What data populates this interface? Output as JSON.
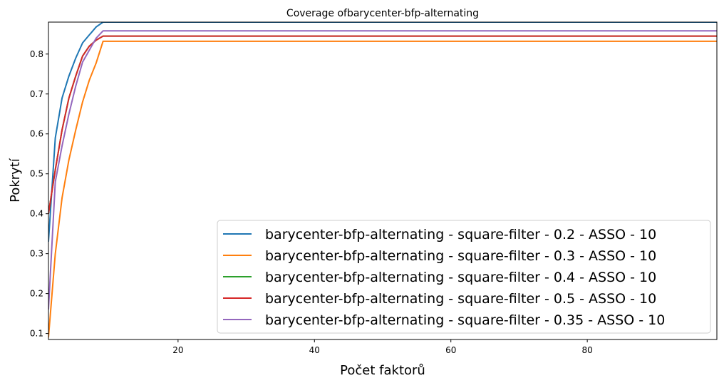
{
  "chart_data": {
    "type": "line",
    "title": "Coverage ofbarycenter-bfp-alternating",
    "xlabel": "Počet faktorů",
    "ylabel": "Pokrytí",
    "xlim": [
      1,
      99
    ],
    "ylim": [
      0.085,
      0.88
    ],
    "xticks": [
      20,
      40,
      60,
      80
    ],
    "yticks": [
      0.1,
      0.2,
      0.3,
      0.4,
      0.5,
      0.6,
      0.7,
      0.8
    ],
    "grid": false,
    "legend_position": "lower-right",
    "series": [
      {
        "name": "barycenter-bfp-alternating - square-filter - 0.2 - ASSO - 10",
        "color": "#1f77b4",
        "x": [
          1,
          2,
          3,
          4,
          5,
          6,
          7,
          8,
          9,
          10,
          99
        ],
        "y": [
          0.33,
          0.59,
          0.69,
          0.745,
          0.79,
          0.828,
          0.848,
          0.868,
          0.88,
          0.88,
          0.88
        ]
      },
      {
        "name": "barycenter-bfp-alternating - square-filter - 0.3 - ASSO - 10",
        "color": "#ff7f0e",
        "x": [
          1,
          2,
          3,
          4,
          5,
          6,
          7,
          8,
          9,
          10,
          99
        ],
        "y": [
          0.09,
          0.3,
          0.44,
          0.535,
          0.61,
          0.68,
          0.735,
          0.778,
          0.832,
          0.832,
          0.832
        ]
      },
      {
        "name": "barycenter-bfp-alternating - square-filter - 0.4 - ASSO - 10",
        "color": "#2ca02c",
        "x": [
          1,
          2,
          3,
          4,
          5,
          6,
          7,
          8,
          9,
          10,
          99
        ],
        "y": [
          0.4,
          0.51,
          0.61,
          0.69,
          0.745,
          0.795,
          0.82,
          0.835,
          0.845,
          0.845,
          0.845
        ]
      },
      {
        "name": "barycenter-bfp-alternating - square-filter - 0.5 - ASSO - 10",
        "color": "#d62728",
        "x": [
          1,
          2,
          3,
          4,
          5,
          6,
          7,
          8,
          9,
          10,
          99
        ],
        "y": [
          0.4,
          0.51,
          0.61,
          0.69,
          0.745,
          0.795,
          0.82,
          0.835,
          0.845,
          0.845,
          0.845
        ]
      },
      {
        "name": "barycenter-bfp-alternating - square-filter - 0.35 - ASSO - 10",
        "color": "#9467bd",
        "x": [
          1,
          2,
          3,
          4,
          5,
          6,
          7,
          8,
          9,
          10,
          99
        ],
        "y": [
          0.16,
          0.48,
          0.57,
          0.65,
          0.72,
          0.78,
          0.81,
          0.84,
          0.858,
          0.858,
          0.858
        ]
      }
    ]
  }
}
